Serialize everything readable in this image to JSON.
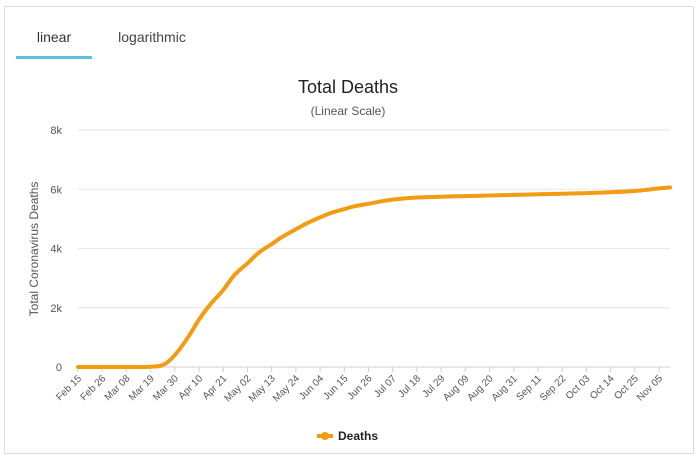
{
  "tabs": [
    {
      "label": "linear",
      "active": true
    },
    {
      "label": "logarithmic",
      "active": false
    }
  ],
  "accent_color": "#5bc0de",
  "chart_data": {
    "type": "line",
    "title": "Total Deaths",
    "subtitle": "(Linear Scale)",
    "xlabel": "",
    "ylabel": "Total Coronavirus Deaths",
    "ylim": [
      0,
      8000
    ],
    "yticks": [
      0,
      2000,
      4000,
      6000,
      8000
    ],
    "ytick_labels": [
      "0",
      "2k",
      "4k",
      "6k",
      "8k"
    ],
    "grid": true,
    "legend": "bottom",
    "series_color": "#f39c12",
    "x_tick_labels": [
      "Feb 15",
      "Feb 26",
      "Mar 08",
      "Mar 19",
      "Mar 30",
      "Apr 10",
      "Apr 21",
      "May 02",
      "May 13",
      "May 24",
      "Jun 04",
      "Jun 15",
      "Jun 26",
      "Jul 07",
      "Jul 18",
      "Jul 29",
      "Aug 09",
      "Aug 20",
      "Aug 31",
      "Sep 11",
      "Sep 22",
      "Oct 03",
      "Oct 14",
      "Oct 25",
      "Nov 05"
    ],
    "x": [
      "Feb 15",
      "Feb 26",
      "Mar 08",
      "Mar 19",
      "Mar 25",
      "Mar 30",
      "Apr 05",
      "Apr 10",
      "Apr 15",
      "Apr 21",
      "Apr 26",
      "May 02",
      "May 07",
      "May 13",
      "May 18",
      "May 24",
      "May 29",
      "Jun 04",
      "Jun 09",
      "Jun 15",
      "Jun 20",
      "Jun 26",
      "Jul 01",
      "Jul 07",
      "Jul 18",
      "Jul 29",
      "Aug 09",
      "Aug 20",
      "Aug 31",
      "Sep 11",
      "Sep 22",
      "Oct 03",
      "Oct 14",
      "Oct 25",
      "Nov 05",
      "Nov 10"
    ],
    "series": [
      {
        "name": "Deaths",
        "values": [
          0,
          0,
          0,
          10,
          80,
          400,
          1000,
          1600,
          2100,
          2600,
          3100,
          3500,
          3850,
          4150,
          4400,
          4650,
          4850,
          5050,
          5200,
          5330,
          5430,
          5510,
          5580,
          5650,
          5720,
          5750,
          5770,
          5790,
          5810,
          5830,
          5850,
          5870,
          5900,
          5940,
          6030,
          6060
        ]
      }
    ]
  }
}
